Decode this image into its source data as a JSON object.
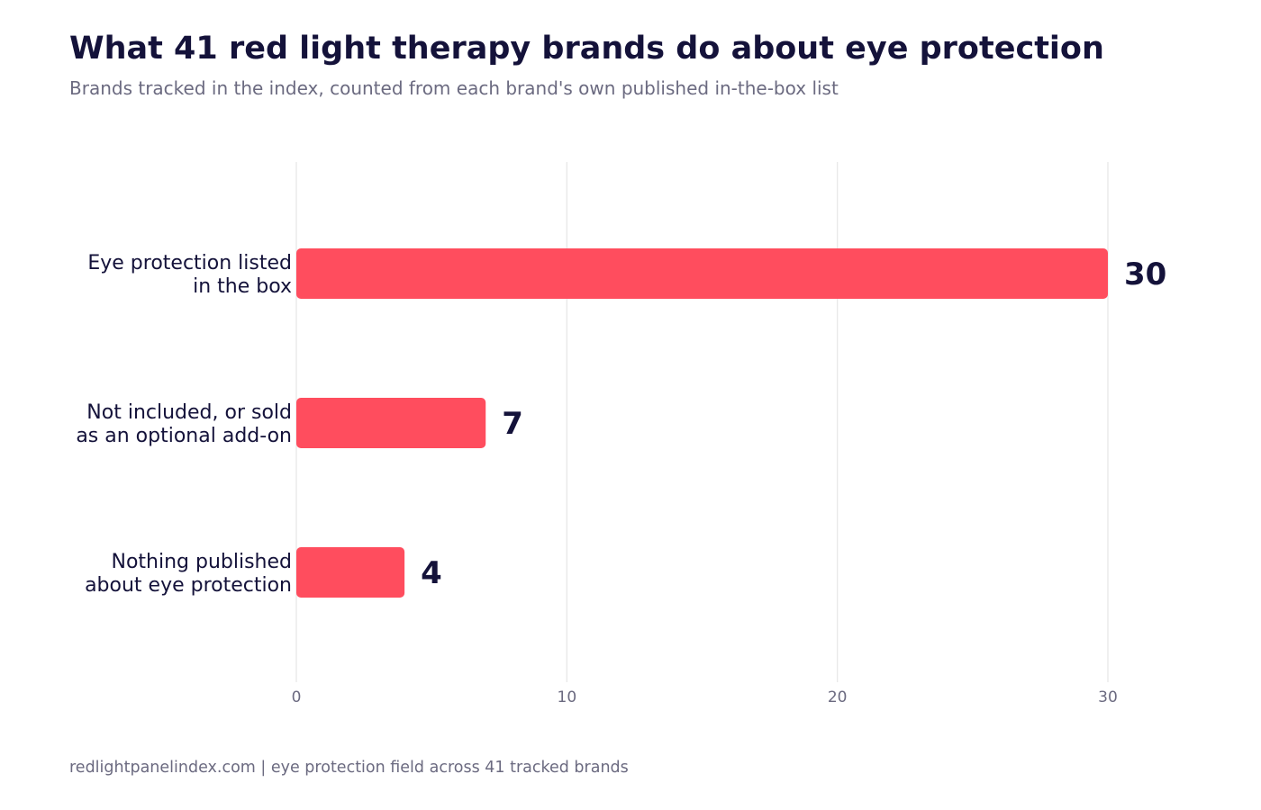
{
  "header": {
    "title": "What 41 red light therapy brands do about eye protection",
    "subtitle": "Brands tracked in the index, counted from each brand's own published in-the-box list"
  },
  "footer": {
    "source": "redlightpanelindex.com | eye protection field across 41 tracked brands"
  },
  "colors": {
    "bar": "#ff4d5e",
    "text": "#14123a",
    "muted": "#6b6a80",
    "grid": "#e6e6e6"
  },
  "chart_data": {
    "type": "bar",
    "orientation": "horizontal",
    "categories": [
      [
        "Eye protection listed",
        "in the box"
      ],
      [
        "Not included, or sold",
        "as an optional add-on"
      ],
      [
        "Nothing published",
        "about eye protection"
      ]
    ],
    "values": [
      30,
      7,
      4
    ],
    "xlim": [
      0,
      30
    ],
    "xticks": [
      0,
      10,
      20,
      30
    ],
    "grid": "vertical",
    "legend": "none"
  }
}
